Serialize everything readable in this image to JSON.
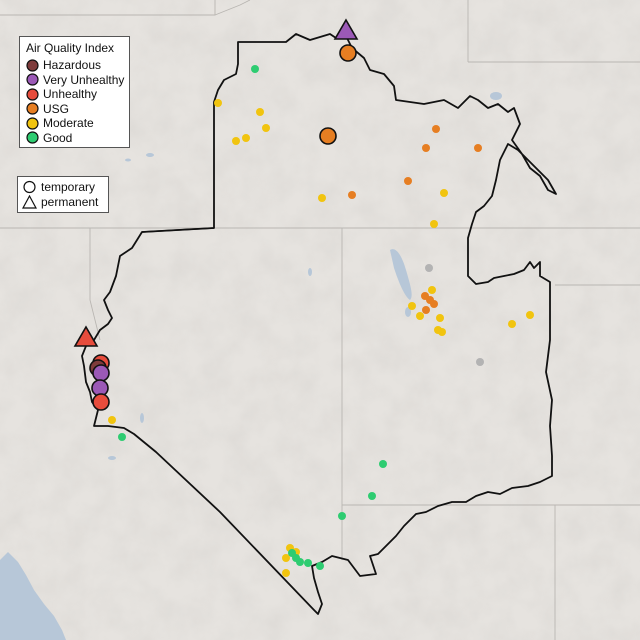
{
  "legend": {
    "title": "Air Quality Index",
    "categories": [
      {
        "label": "Hazardous",
        "color": "#7e3b3b"
      },
      {
        "label": "Very Unhealthy",
        "color": "#9b59b6"
      },
      {
        "label": "Unhealthy",
        "color": "#e74c3c"
      },
      {
        "label": "USG",
        "color": "#e67e22"
      },
      {
        "label": "Moderate",
        "color": "#f1c40f"
      },
      {
        "label": "Good",
        "color": "#2ecc71"
      }
    ]
  },
  "monitor_type_legend": {
    "items": [
      {
        "label": "temporary",
        "shape": "circle"
      },
      {
        "label": "permanent",
        "shape": "triangle"
      }
    ]
  },
  "colors": {
    "basemap": "#e6e3df",
    "water": "#b7c7d8",
    "outline": "#111111",
    "no_data": "#b3b3b3"
  }
}
